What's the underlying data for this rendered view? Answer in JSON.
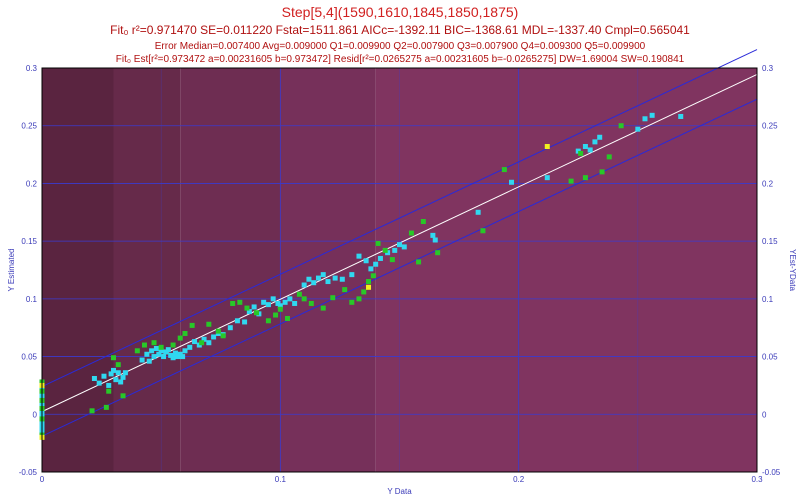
{
  "titles": {
    "line1": "Step[5,4](1590,1610,1845,1850,1875)",
    "line2": "Fit₀ r²=0.971470 SE=0.011220 Fstat=1511.861 AICc=-1392.11 BIC=-1368.61 MDL=-1337.40 Cmpl=0.565041",
    "line3": "Error Median=0.007400 Avg=0.009000 Q1=0.009900 Q2=0.007900 Q3=0.007900 Q4=0.009300 Q5=0.009900",
    "line4": "Fit₀ Est[r²=0.973472 a=0.00231605 b=0.973472] Resid[r²=0.0265275 a=0.00231605 b=-0.0265275] DW=1.69004 SW=0.190841"
  },
  "colors": {
    "background_bands": [
      "#5a2440",
      "#662a4a",
      "#6e2d52",
      "#76305a",
      "#803460",
      "#8a3463"
    ],
    "grid": "#3a3ad0",
    "fit_line": "#ffffff",
    "band_lines": "#2a2ad8",
    "series_cyan": "#30d8f0",
    "series_green": "#28c828",
    "series_yellow": "#f0f020"
  },
  "chart_data": {
    "type": "scatter",
    "xlabel": "Y Data",
    "ylabel": "Y Estimated",
    "ylabel_right": "YEst-YData",
    "xlim": [
      0,
      0.3
    ],
    "ylim": [
      -0.05,
      0.3
    ],
    "xticks": [
      "0",
      "0.1",
      "0.2",
      "0.3"
    ],
    "yticks": [
      "-0.05",
      "0",
      "0.05",
      "0.1",
      "0.15",
      "0.2",
      "0.25",
      "0.3"
    ],
    "y_right_ticks": [
      "-0.05",
      "0",
      "0.05",
      "0.1",
      "0.15",
      "0.2",
      "0.25",
      "0.3"
    ],
    "background_band_x_edges": [
      0,
      0.03,
      0.058,
      0.1,
      0.14,
      0.3
    ],
    "fit_line": {
      "x": [
        0,
        0.3
      ],
      "y": [
        0.0023,
        0.2944
      ]
    },
    "upper_band": {
      "x": [
        0,
        0.3
      ],
      "y": [
        0.024,
        0.316
      ]
    },
    "lower_band": {
      "x": [
        0,
        0.3
      ],
      "y": [
        -0.019,
        0.273
      ]
    },
    "series": [
      {
        "color_key": "series_cyan",
        "points": [
          [
            0,
            0.022
          ],
          [
            0,
            0.018
          ],
          [
            0,
            0.015
          ],
          [
            0,
            0.012
          ],
          [
            0,
            0.009
          ],
          [
            0,
            0.006
          ],
          [
            0,
            0.003
          ],
          [
            0,
            0.0
          ],
          [
            0,
            -0.003
          ],
          [
            0,
            -0.006
          ],
          [
            0,
            -0.009
          ],
          [
            0,
            -0.012
          ],
          [
            0,
            -0.015
          ],
          [
            0.022,
            0.031
          ],
          [
            0.024,
            0.027
          ],
          [
            0.026,
            0.033
          ],
          [
            0.028,
            0.025
          ],
          [
            0.029,
            0.035
          ],
          [
            0.03,
            0.038
          ],
          [
            0.031,
            0.03
          ],
          [
            0.032,
            0.036
          ],
          [
            0.033,
            0.028
          ],
          [
            0.034,
            0.032
          ],
          [
            0.035,
            0.036
          ],
          [
            0.042,
            0.047
          ],
          [
            0.044,
            0.052
          ],
          [
            0.045,
            0.046
          ],
          [
            0.046,
            0.055
          ],
          [
            0.047,
            0.05
          ],
          [
            0.048,
            0.057
          ],
          [
            0.049,
            0.052
          ],
          [
            0.05,
            0.055
          ],
          [
            0.051,
            0.05
          ],
          [
            0.052,
            0.054
          ],
          [
            0.053,
            0.056
          ],
          [
            0.054,
            0.051
          ],
          [
            0.055,
            0.049
          ],
          [
            0.056,
            0.053
          ],
          [
            0.057,
            0.05
          ],
          [
            0.058,
            0.052
          ],
          [
            0.059,
            0.05
          ],
          [
            0.06,
            0.055
          ],
          [
            0.062,
            0.058
          ],
          [
            0.064,
            0.063
          ],
          [
            0.066,
            0.06
          ],
          [
            0.068,
            0.065
          ],
          [
            0.07,
            0.062
          ],
          [
            0.072,
            0.067
          ],
          [
            0.074,
            0.07
          ],
          [
            0.076,
            0.069
          ],
          [
            0.079,
            0.075
          ],
          [
            0.082,
            0.081
          ],
          [
            0.085,
            0.08
          ],
          [
            0.087,
            0.089
          ],
          [
            0.089,
            0.093
          ],
          [
            0.091,
            0.087
          ],
          [
            0.093,
            0.097
          ],
          [
            0.095,
            0.095
          ],
          [
            0.097,
            0.1
          ],
          [
            0.099,
            0.096
          ],
          [
            0.1,
            0.094
          ],
          [
            0.102,
            0.097
          ],
          [
            0.104,
            0.1
          ],
          [
            0.106,
            0.096
          ],
          [
            0.11,
            0.112
          ],
          [
            0.112,
            0.117
          ],
          [
            0.114,
            0.114
          ],
          [
            0.116,
            0.118
          ],
          [
            0.118,
            0.121
          ],
          [
            0.12,
            0.115
          ],
          [
            0.123,
            0.118
          ],
          [
            0.126,
            0.117
          ],
          [
            0.13,
            0.121
          ],
          [
            0.133,
            0.137
          ],
          [
            0.136,
            0.133
          ],
          [
            0.138,
            0.126
          ],
          [
            0.14,
            0.13
          ],
          [
            0.142,
            0.135
          ],
          [
            0.145,
            0.14
          ],
          [
            0.148,
            0.142
          ],
          [
            0.15,
            0.147
          ],
          [
            0.152,
            0.145
          ],
          [
            0.164,
            0.155
          ],
          [
            0.165,
            0.151
          ],
          [
            0.183,
            0.175
          ],
          [
            0.197,
            0.201
          ],
          [
            0.212,
            0.205
          ],
          [
            0.225,
            0.228
          ],
          [
            0.228,
            0.232
          ],
          [
            0.23,
            0.229
          ],
          [
            0.232,
            0.236
          ],
          [
            0.234,
            0.24
          ],
          [
            0.25,
            0.247
          ],
          [
            0.253,
            0.256
          ],
          [
            0.256,
            0.259
          ],
          [
            0.268,
            0.258
          ]
        ]
      },
      {
        "color_key": "series_green",
        "points": [
          [
            0,
            0.028
          ],
          [
            0,
            0.02
          ],
          [
            0,
            0.012
          ],
          [
            0,
            0.005
          ],
          [
            0,
            -0.004
          ],
          [
            0,
            -0.018
          ],
          [
            0.021,
            0.003
          ],
          [
            0.027,
            0.006
          ],
          [
            0.028,
            0.02
          ],
          [
            0.03,
            0.049
          ],
          [
            0.032,
            0.043
          ],
          [
            0.034,
            0.016
          ],
          [
            0.04,
            0.055
          ],
          [
            0.043,
            0.06
          ],
          [
            0.047,
            0.062
          ],
          [
            0.05,
            0.058
          ],
          [
            0.055,
            0.06
          ],
          [
            0.058,
            0.066
          ],
          [
            0.06,
            0.07
          ],
          [
            0.063,
            0.077
          ],
          [
            0.067,
            0.062
          ],
          [
            0.07,
            0.078
          ],
          [
            0.074,
            0.072
          ],
          [
            0.076,
            0.068
          ],
          [
            0.08,
            0.096
          ],
          [
            0.083,
            0.097
          ],
          [
            0.086,
            0.092
          ],
          [
            0.09,
            0.088
          ],
          [
            0.095,
            0.081
          ],
          [
            0.098,
            0.086
          ],
          [
            0.1,
            0.091
          ],
          [
            0.103,
            0.083
          ],
          [
            0.108,
            0.104
          ],
          [
            0.11,
            0.1
          ],
          [
            0.113,
            0.096
          ],
          [
            0.118,
            0.092
          ],
          [
            0.122,
            0.101
          ],
          [
            0.127,
            0.108
          ],
          [
            0.13,
            0.097
          ],
          [
            0.133,
            0.1
          ],
          [
            0.135,
            0.106
          ],
          [
            0.137,
            0.115
          ],
          [
            0.139,
            0.12
          ],
          [
            0.141,
            0.148
          ],
          [
            0.144,
            0.142
          ],
          [
            0.147,
            0.134
          ],
          [
            0.155,
            0.157
          ],
          [
            0.158,
            0.132
          ],
          [
            0.16,
            0.167
          ],
          [
            0.166,
            0.14
          ],
          [
            0.185,
            0.159
          ],
          [
            0.194,
            0.212
          ],
          [
            0.222,
            0.202
          ],
          [
            0.226,
            0.226
          ],
          [
            0.228,
            0.205
          ],
          [
            0.235,
            0.21
          ],
          [
            0.238,
            0.223
          ],
          [
            0.243,
            0.25
          ]
        ]
      },
      {
        "color_key": "series_yellow",
        "points": [
          [
            0,
            0.025
          ],
          [
            0,
            -0.02
          ],
          [
            0.137,
            0.11
          ],
          [
            0.212,
            0.232
          ]
        ]
      }
    ]
  }
}
